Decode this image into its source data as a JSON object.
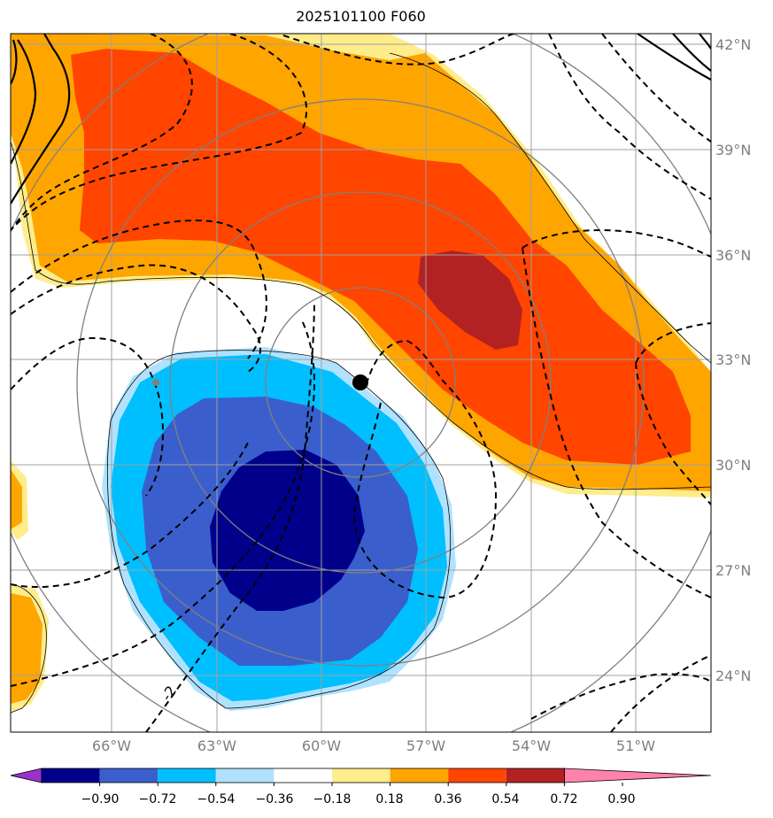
{
  "title": "2025101100 F060",
  "lat_labels": [
    "42°N",
    "39°N",
    "36°N",
    "33°N",
    "30°N",
    "27°N",
    "24°N"
  ],
  "lon_labels": [
    "66°W",
    "63°W",
    "60°W",
    "57°W",
    "54°W",
    "51°W"
  ],
  "colorbar": {
    "colors": [
      "#9932cc",
      "#00008b",
      "#3a5fcd",
      "#00bfff",
      "#b0e2ff",
      "#ffffff",
      "#ffec8b",
      "#ffa500",
      "#ff4500",
      "#b22222",
      "#ff82ab"
    ],
    "ticks": [
      "−0.90",
      "−0.72",
      "−0.54",
      "−0.36",
      "−0.18",
      "0.18",
      "0.36",
      "0.54",
      "0.72",
      "0.90"
    ]
  },
  "contour_label": "-2",
  "storm_center": {
    "lat": 32.4,
    "lon": -58.9
  },
  "colors": {
    "grid": "#a0a0a0",
    "range_rings": "#808080",
    "contours": "#000000"
  }
}
